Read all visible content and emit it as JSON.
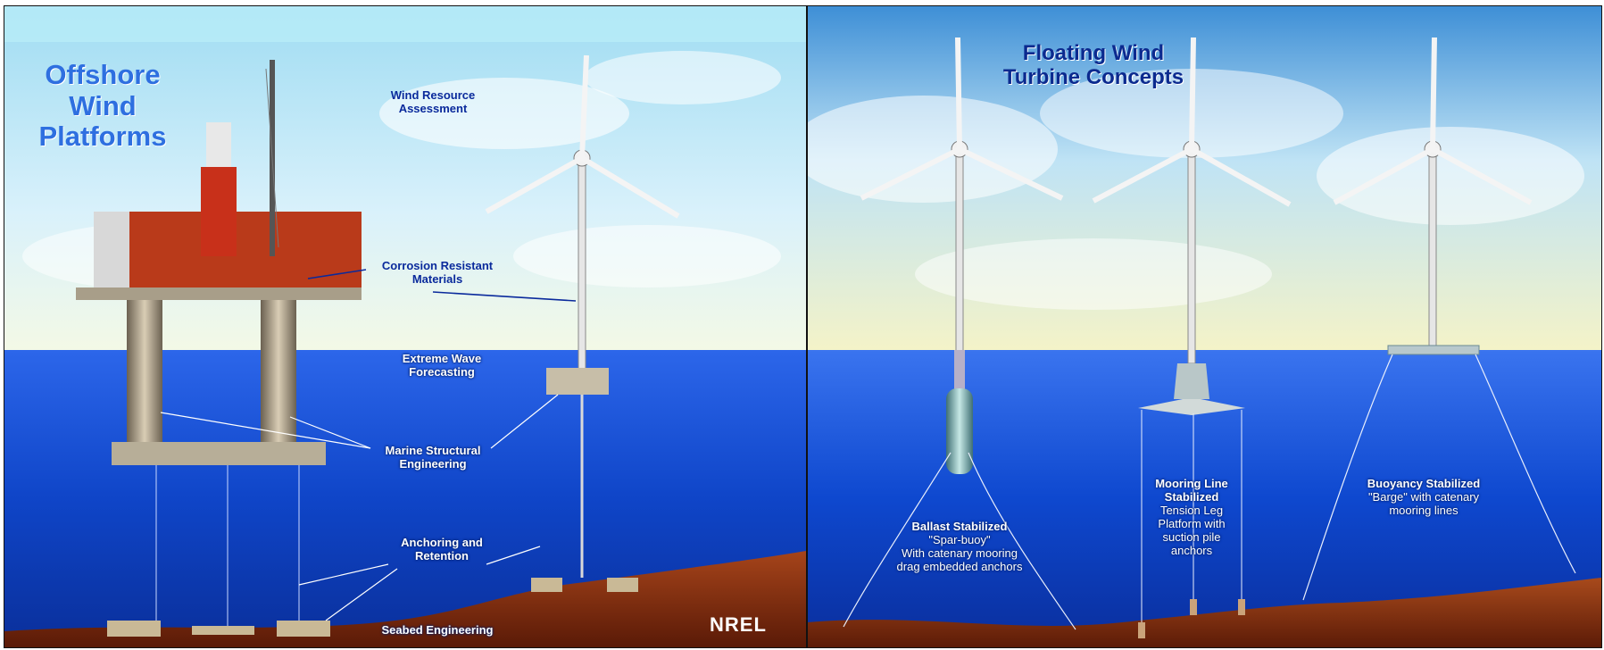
{
  "left_panel": {
    "title_lines": [
      "Offshore",
      "Wind",
      "Platforms"
    ],
    "labels": {
      "wind_resource": [
        "Wind Resource",
        "Assessment"
      ],
      "corrosion": [
        "Corrosion Resistant",
        "Materials"
      ],
      "wave": [
        "Extreme Wave",
        "Forecasting"
      ],
      "marine": [
        "Marine Structural",
        "Engineering"
      ],
      "anchoring": [
        "Anchoring and",
        "Retention"
      ],
      "seabed": "Seabed Engineering"
    },
    "logo": "NREL"
  },
  "right_panel": {
    "title_lines": [
      "Floating Wind",
      "Turbine Concepts"
    ],
    "concepts": [
      {
        "heading": "Ballast Stabilized",
        "lines": [
          "\"Spar-buoy\"",
          "With catenary mooring",
          "drag embedded anchors"
        ]
      },
      {
        "heading": "Mooring Line Stabilized",
        "heading_lines": [
          "Mooring Line",
          "Stabilized"
        ],
        "lines": [
          "Tension Leg",
          "Platform with",
          "suction pile",
          "anchors"
        ]
      },
      {
        "heading": "Buoyancy Stabilized",
        "lines": [
          "\"Barge\" with catenary",
          "mooring lines"
        ]
      }
    ]
  },
  "colors": {
    "sky": "#bfe6f7",
    "sea_deep": "#0b3fc2",
    "sea_surface": "#2a63e8",
    "seabed": "#8a2e0d",
    "title_blue": "#2e6fe0",
    "label_blue": "#0a2a9c"
  }
}
